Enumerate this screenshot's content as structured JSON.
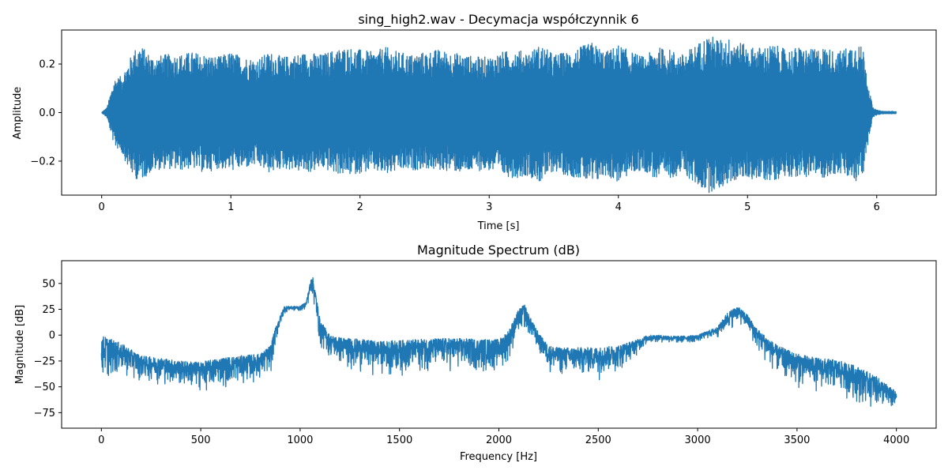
{
  "chart_data": [
    {
      "type": "line",
      "title": "sing_high2.wav - Decymacja współczynnik 6",
      "xlabel": "Time [s]",
      "ylabel": "Amplitude",
      "xlim": [
        -0.31,
        6.46
      ],
      "ylim": [
        -0.34,
        0.34
      ],
      "xticks": [
        0,
        1,
        2,
        3,
        4,
        5,
        6
      ],
      "yticks": [
        -0.2,
        0.0,
        0.2
      ],
      "xtick_labels": [
        "0",
        "1",
        "2",
        "3",
        "4",
        "5",
        "6"
      ],
      "ytick_labels": [
        "−0.2",
        "0.0",
        "0.2"
      ],
      "grid": false,
      "color": "#1f77b4",
      "x_range": [
        0,
        6.15
      ],
      "envelope": {
        "t": [
          0.0,
          0.04,
          0.06,
          0.1,
          0.15,
          0.2,
          0.25,
          0.3,
          0.35,
          0.4,
          0.5,
          0.6,
          0.7,
          0.8,
          0.9,
          1.0,
          1.1,
          1.2,
          1.3,
          1.4,
          1.5,
          1.6,
          1.7,
          1.8,
          1.9,
          2.0,
          2.1,
          2.2,
          2.3,
          2.4,
          2.5,
          2.6,
          2.7,
          2.8,
          2.9,
          3.0,
          3.1,
          3.2,
          3.3,
          3.4,
          3.5,
          3.6,
          3.7,
          3.8,
          3.9,
          4.0,
          4.1,
          4.2,
          4.3,
          4.4,
          4.5,
          4.6,
          4.7,
          4.8,
          4.9,
          5.0,
          5.1,
          5.2,
          5.3,
          5.4,
          5.5,
          5.6,
          5.7,
          5.8,
          5.85,
          5.9,
          5.94,
          5.97,
          6.0,
          6.05,
          6.15
        ],
        "upper": [
          0.0,
          0.02,
          0.06,
          0.14,
          0.15,
          0.2,
          0.26,
          0.28,
          0.25,
          0.23,
          0.24,
          0.24,
          0.25,
          0.24,
          0.23,
          0.25,
          0.23,
          0.22,
          0.25,
          0.23,
          0.24,
          0.25,
          0.24,
          0.26,
          0.27,
          0.26,
          0.25,
          0.27,
          0.25,
          0.24,
          0.25,
          0.26,
          0.25,
          0.24,
          0.23,
          0.23,
          0.25,
          0.26,
          0.25,
          0.28,
          0.24,
          0.25,
          0.27,
          0.29,
          0.25,
          0.28,
          0.25,
          0.23,
          0.27,
          0.26,
          0.24,
          0.28,
          0.32,
          0.3,
          0.31,
          0.27,
          0.27,
          0.28,
          0.26,
          0.27,
          0.26,
          0.27,
          0.25,
          0.28,
          0.29,
          0.26,
          0.1,
          0.02,
          0.01,
          0.005,
          0.005
        ],
        "lower": [
          0.0,
          -0.02,
          -0.06,
          -0.14,
          -0.16,
          -0.22,
          -0.27,
          -0.28,
          -0.26,
          -0.24,
          -0.23,
          -0.24,
          -0.23,
          -0.25,
          -0.23,
          -0.24,
          -0.23,
          -0.22,
          -0.25,
          -0.23,
          -0.24,
          -0.25,
          -0.23,
          -0.25,
          -0.26,
          -0.25,
          -0.24,
          -0.26,
          -0.24,
          -0.24,
          -0.23,
          -0.24,
          -0.24,
          -0.25,
          -0.24,
          -0.24,
          -0.26,
          -0.27,
          -0.26,
          -0.29,
          -0.24,
          -0.26,
          -0.27,
          -0.3,
          -0.26,
          -0.29,
          -0.25,
          -0.24,
          -0.28,
          -0.27,
          -0.25,
          -0.3,
          -0.33,
          -0.31,
          -0.28,
          -0.27,
          -0.28,
          -0.28,
          -0.26,
          -0.27,
          -0.26,
          -0.27,
          -0.25,
          -0.28,
          -0.29,
          -0.25,
          -0.1,
          -0.02,
          -0.01,
          -0.005,
          -0.005
        ]
      }
    },
    {
      "type": "line",
      "title": "Magnitude Spectrum (dB)",
      "xlabel": "Frequency [Hz]",
      "ylabel": "Magnitude [dB]",
      "xlim": [
        -200,
        4200
      ],
      "ylim": [
        -90,
        72
      ],
      "xticks": [
        0,
        500,
        1000,
        1500,
        2000,
        2500,
        3000,
        3500,
        4000
      ],
      "yticks": [
        -75,
        -50,
        -25,
        0,
        25,
        50
      ],
      "xtick_labels": [
        "0",
        "500",
        "1000",
        "1500",
        "2000",
        "2500",
        "3000",
        "3500",
        "4000"
      ],
      "ytick_labels": [
        "−75",
        "−50",
        "−25",
        "0",
        "25",
        "50"
      ],
      "grid": false,
      "color": "#1f77b4",
      "x_range": [
        0,
        4000
      ],
      "envelope": {
        "f": [
          0,
          100,
          200,
          300,
          400,
          500,
          600,
          700,
          800,
          850,
          880,
          920,
          950,
          1000,
          1030,
          1060,
          1080,
          1100,
          1150,
          1200,
          1300,
          1400,
          1500,
          1600,
          1700,
          1800,
          1900,
          2000,
          2050,
          2100,
          2130,
          2150,
          2200,
          2250,
          2300,
          2400,
          2500,
          2600,
          2700,
          2750,
          2800,
          2900,
          3000,
          3050,
          3100,
          3150,
          3200,
          3250,
          3300,
          3400,
          3500,
          3600,
          3700,
          3800,
          3900,
          4000
        ],
        "upper": [
          0,
          -8,
          -20,
          -22,
          -25,
          -26,
          -22,
          -20,
          -18,
          -10,
          10,
          28,
          28,
          28,
          32,
          60,
          40,
          15,
          0,
          -2,
          -4,
          -6,
          -5,
          -4,
          -3,
          -3,
          -4,
          -4,
          5,
          25,
          30,
          20,
          2,
          -10,
          -12,
          -12,
          -12,
          -10,
          -4,
          0,
          0,
          -1,
          0,
          4,
          8,
          22,
          28,
          20,
          6,
          -10,
          -18,
          -22,
          -24,
          -30,
          -40,
          -55
        ],
        "lower": [
          -52,
          -45,
          -48,
          -50,
          -55,
          -60,
          -55,
          -52,
          -48,
          -45,
          -10,
          20,
          22,
          22,
          25,
          35,
          10,
          -18,
          -25,
          -35,
          -40,
          -42,
          -45,
          -40,
          -40,
          -40,
          -42,
          -40,
          -30,
          -5,
          0,
          -5,
          -20,
          -40,
          -45,
          -45,
          -45,
          -40,
          -20,
          -10,
          -8,
          -10,
          -8,
          -5,
          -5,
          0,
          10,
          0,
          -20,
          -45,
          -55,
          -58,
          -62,
          -70,
          -75,
          -80
        ]
      }
    }
  ]
}
